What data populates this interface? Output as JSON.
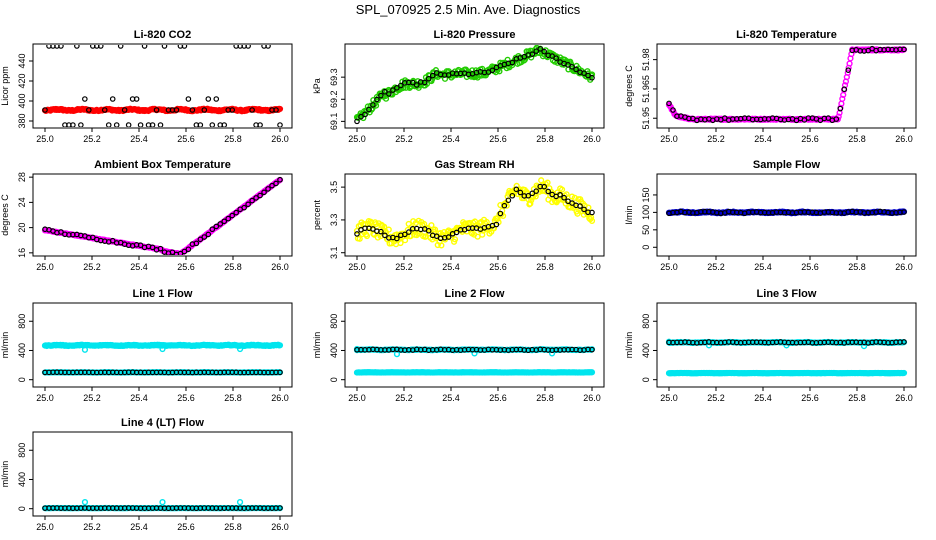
{
  "title": "SPL_070925  2.5 Min. Ave. Diagnostics",
  "colors": {
    "red": "#ff0000",
    "green": "#22cc00",
    "magenta": "#ff00ff",
    "yellow": "#ffff00",
    "blue": "#0000cc",
    "cyan": "#00e5ee",
    "black": "#000000"
  },
  "chart_data": [
    {
      "type": "scatter",
      "title": "Li-820 CO2",
      "ylabel": "Licor ppm",
      "xlim": [
        25.0,
        26.0
      ],
      "ylim": [
        373,
        457
      ],
      "xticks": [
        "25.0",
        "25.2",
        "25.4",
        "25.6",
        "25.8",
        "26.0"
      ],
      "yticks": [
        {
          "v": 380,
          "label": "380"
        },
        {
          "v": 400,
          "label": "400"
        },
        {
          "v": 420,
          "label": "420"
        },
        {
          "v": 440,
          "label": "440"
        }
      ],
      "series": [
        {
          "name": "co2",
          "color": "#ff0000",
          "style": "dense",
          "base": 391,
          "amp": 1.5
        },
        {
          "name": "co2-avg",
          "color": "#000000",
          "style": "outlier",
          "base": 391,
          "amp": 1.5,
          "hi": 455,
          "lo": 376,
          "mid": 402
        }
      ]
    },
    {
      "type": "scatter",
      "title": "Li-820 Pressure",
      "ylabel": "kPa",
      "xlim": [
        25.0,
        26.0
      ],
      "ylim": [
        69.07,
        69.45
      ],
      "xticks": [
        "25.0",
        "25.2",
        "25.4",
        "25.6",
        "25.8",
        "26.0"
      ],
      "yticks": [
        {
          "v": 69.1,
          "label": "69.1"
        },
        {
          "v": 69.2,
          "label": "69.2"
        },
        {
          "v": 69.3,
          "label": "69.3"
        }
      ],
      "series": [
        {
          "name": "pressure",
          "color": "#22cc00",
          "style": "dense",
          "shape": "pressure",
          "spread": 0.02
        },
        {
          "name": "pressure-avg",
          "color": "#000000",
          "style": "sparse",
          "shape": "pressure"
        }
      ]
    },
    {
      "type": "scatter",
      "title": "Li-820 Temperature",
      "ylabel": "degrees C",
      "xlim": [
        25.0,
        26.0
      ],
      "ylim": [
        51.945,
        51.988
      ],
      "xticks": [
        "25.0",
        "25.2",
        "25.4",
        "25.6",
        "25.8",
        "26.0"
      ],
      "yticks": [
        {
          "v": 51.95,
          "label": "51.95"
        },
        {
          "v": 51.965,
          "label": "51.965"
        },
        {
          "v": 51.98,
          "label": "51.98"
        }
      ],
      "series": [
        {
          "name": "temp",
          "color": "#ff00ff",
          "style": "dense",
          "shape": "licortemp",
          "spread": 0.0003
        },
        {
          "name": "temp-avg",
          "color": "#000000",
          "style": "sparse",
          "shape": "licortemp"
        }
      ]
    },
    {
      "type": "scatter",
      "title": "Ambient Box Temperature",
      "ylabel": "degrees C",
      "xlim": [
        25.0,
        26.0
      ],
      "ylim": [
        15.5,
        28.5
      ],
      "xticks": [
        "25.0",
        "25.2",
        "25.4",
        "25.6",
        "25.8",
        "26.0"
      ],
      "yticks": [
        {
          "v": 16,
          "label": "16"
        },
        {
          "v": 20,
          "label": "20"
        },
        {
          "v": 24,
          "label": "24"
        },
        {
          "v": 28,
          "label": "28"
        }
      ],
      "series": [
        {
          "name": "boxtemp",
          "color": "#ff00ff",
          "style": "dense",
          "shape": "boxtemp",
          "spread": 0.05
        },
        {
          "name": "boxtemp-avg",
          "color": "#000000",
          "style": "sparse",
          "shape": "boxtemp"
        }
      ]
    },
    {
      "type": "scatter",
      "title": "Gas Stream RH",
      "ylabel": "percent",
      "xlim": [
        25.0,
        26.0
      ],
      "ylim": [
        3.08,
        3.58
      ],
      "xticks": [
        "25.0",
        "25.2",
        "25.4",
        "25.6",
        "25.8",
        "26.0"
      ],
      "yticks": [
        {
          "v": 3.1,
          "label": "3.1"
        },
        {
          "v": 3.3,
          "label": "3.3"
        },
        {
          "v": 3.5,
          "label": "3.5"
        }
      ],
      "series": [
        {
          "name": "rh",
          "color": "#ffff00",
          "style": "dense",
          "shape": "rh",
          "spread": 0.05
        },
        {
          "name": "rh-avg",
          "color": "#000000",
          "style": "sparse",
          "shape": "rh"
        }
      ]
    },
    {
      "type": "scatter",
      "title": "Sample Flow",
      "ylabel": "l/min",
      "xlim": [
        25.0,
        26.0
      ],
      "ylim": [
        -25,
        210
      ],
      "xticks": [
        "25.0",
        "25.2",
        "25.4",
        "25.6",
        "25.8",
        "26.0"
      ],
      "yticks": [
        {
          "v": 0,
          "label": "0"
        },
        {
          "v": 50,
          "label": "50"
        },
        {
          "v": 100,
          "label": "100"
        },
        {
          "v": 150,
          "label": "150"
        }
      ],
      "series": [
        {
          "name": "flow",
          "color": "#0000cc",
          "style": "dense",
          "base": 100,
          "amp": 3
        },
        {
          "name": "flow-avg",
          "color": "#000000",
          "style": "sparse",
          "base": 100,
          "amp": 3
        }
      ]
    },
    {
      "type": "scatter",
      "title": "Line 1 Flow",
      "ylabel": "ml/min",
      "xlim": [
        25.0,
        26.0
      ],
      "ylim": [
        -100,
        1050
      ],
      "xticks": [
        "25.0",
        "25.2",
        "25.4",
        "25.6",
        "25.8",
        "26.0"
      ],
      "yticks": [
        {
          "v": 0,
          "label": "0"
        },
        {
          "v": 400,
          "label": "400"
        },
        {
          "v": 800,
          "label": "800"
        }
      ],
      "series": [
        {
          "name": "line1-main",
          "color": "#00e5ee",
          "style": "dense",
          "base": 470,
          "amp": 10,
          "dips": [
            [
              25.17,
              410
            ],
            [
              25.5,
              420
            ],
            [
              25.83,
              420
            ]
          ]
        },
        {
          "name": "line1-low",
          "color": "#00e5ee",
          "style": "dense",
          "base": 100,
          "amp": 3
        },
        {
          "name": "line1-avg",
          "color": "#000000",
          "style": "sparse",
          "base": 100,
          "amp": 3
        }
      ]
    },
    {
      "type": "scatter",
      "title": "Line 2 Flow",
      "ylabel": "ml/min",
      "xlim": [
        25.0,
        26.0
      ],
      "ylim": [
        -100,
        1050
      ],
      "xticks": [
        "25.0",
        "25.2",
        "25.4",
        "25.6",
        "25.8",
        "26.0"
      ],
      "yticks": [
        {
          "v": 0,
          "label": "0"
        },
        {
          "v": 400,
          "label": "400"
        },
        {
          "v": 800,
          "label": "800"
        }
      ],
      "series": [
        {
          "name": "line2-low",
          "color": "#00e5ee",
          "style": "dense",
          "base": 100,
          "amp": 3
        },
        {
          "name": "line2-main",
          "color": "#00e5ee",
          "style": "dense",
          "base": 410,
          "amp": 8,
          "dips": [
            [
              25.0,
              420
            ],
            [
              25.17,
              350
            ],
            [
              25.5,
              360
            ],
            [
              25.83,
              360
            ]
          ]
        },
        {
          "name": "line2-avg",
          "color": "#000000",
          "style": "sparse",
          "base": 410,
          "amp": 8
        }
      ]
    },
    {
      "type": "scatter",
      "title": "Line 3 Flow",
      "ylabel": "ml/min",
      "xlim": [
        25.0,
        26.0
      ],
      "ylim": [
        -100,
        1050
      ],
      "xticks": [
        "25.0",
        "25.2",
        "25.4",
        "25.6",
        "25.8",
        "26.0"
      ],
      "yticks": [
        {
          "v": 0,
          "label": "0"
        },
        {
          "v": 400,
          "label": "400"
        },
        {
          "v": 800,
          "label": "800"
        }
      ],
      "series": [
        {
          "name": "line3-low",
          "color": "#00e5ee",
          "style": "dense",
          "base": 90,
          "amp": 3
        },
        {
          "name": "line3-main",
          "color": "#00e5ee",
          "style": "dense",
          "base": 510,
          "amp": 8,
          "dips": [
            [
              25.0,
              520
            ],
            [
              25.17,
              470
            ],
            [
              25.5,
              470
            ],
            [
              25.83,
              460
            ]
          ]
        },
        {
          "name": "line3-avg",
          "color": "#000000",
          "style": "sparse",
          "base": 510,
          "amp": 8
        }
      ]
    },
    {
      "type": "scatter",
      "title": "Line 4 (LT) Flow",
      "ylabel": "ml/min",
      "xlim": [
        25.0,
        26.0
      ],
      "ylim": [
        -100,
        1050
      ],
      "xticks": [
        "25.0",
        "25.2",
        "25.4",
        "25.6",
        "25.8",
        "26.0"
      ],
      "yticks": [
        {
          "v": 0,
          "label": "0"
        },
        {
          "v": 400,
          "label": "400"
        },
        {
          "v": 800,
          "label": "800"
        }
      ],
      "series": [
        {
          "name": "line4-main",
          "color": "#00e5ee",
          "style": "dense",
          "base": 8,
          "amp": 2,
          "dips": [
            [
              25.17,
              90
            ],
            [
              25.5,
              90
            ],
            [
              25.83,
              90
            ]
          ]
        },
        {
          "name": "line4-avg",
          "color": "#000000",
          "style": "sparse",
          "base": 8,
          "amp": 2
        }
      ]
    }
  ]
}
